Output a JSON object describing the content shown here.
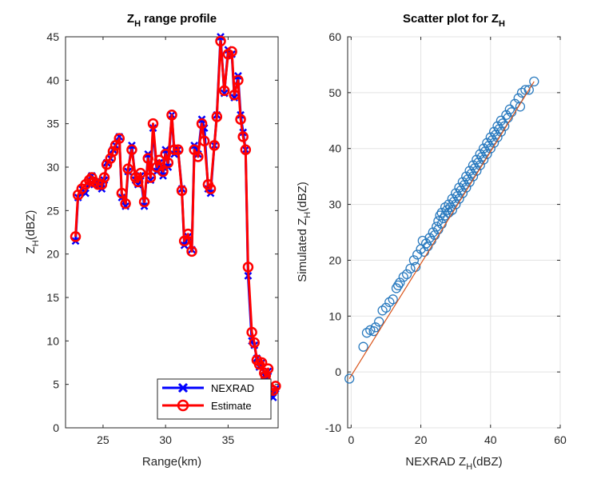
{
  "chart_data": [
    {
      "type": "line",
      "title_main": "Z",
      "title_sub": "H",
      "title_rest": " range profile",
      "xlabel": "Range(km)",
      "ylabel_main": "Z",
      "ylabel_sub": "H",
      "ylabel_rest": "(dBZ)",
      "xlim": [
        22,
        39
      ],
      "ylim": [
        0,
        45
      ],
      "xticks": [
        25,
        30,
        35
      ],
      "yticks": [
        0,
        5,
        10,
        15,
        20,
        25,
        30,
        35,
        40,
        45
      ],
      "legend_position": "bottom-right",
      "series": [
        {
          "name": "NEXRAD",
          "color": "#0000ff",
          "marker": "x",
          "x": [
            22.8,
            23.0,
            23.3,
            23.6,
            23.9,
            24.1,
            24.3,
            24.6,
            24.9,
            25.1,
            25.3,
            25.6,
            25.8,
            26.0,
            26.3,
            26.5,
            26.8,
            27.0,
            27.3,
            27.6,
            27.8,
            28.0,
            28.3,
            28.6,
            28.8,
            29.0,
            29.3,
            29.5,
            29.8,
            30.0,
            30.2,
            30.5,
            30.7,
            31.0,
            31.3,
            31.5,
            31.8,
            32.1,
            32.3,
            32.6,
            32.9,
            33.1,
            33.4,
            33.6,
            33.9,
            34.1,
            34.4,
            34.7,
            35.0,
            35.3,
            35.5,
            35.8,
            36.0,
            36.2,
            36.4,
            36.6,
            36.9,
            37.1,
            37.3,
            37.5,
            37.7,
            37.9,
            38.0,
            38.2,
            38.4,
            38.6,
            38.8
          ],
          "y": [
            21.5,
            26.5,
            27.5,
            27.0,
            28.5,
            29.0,
            28.0,
            28.5,
            27.5,
            28.5,
            30.5,
            31.0,
            32.0,
            32.5,
            33.5,
            26.5,
            25.5,
            29.5,
            32.5,
            28.5,
            28.0,
            29.0,
            25.5,
            31.5,
            28.5,
            34.5,
            29.5,
            30.5,
            29.0,
            32.0,
            30.0,
            36.0,
            31.5,
            32.0,
            27.5,
            21.0,
            22.0,
            20.5,
            32.5,
            31.5,
            35.5,
            34.5,
            27.5,
            27.0,
            32.5,
            36.0,
            45.0,
            38.5,
            43.5,
            43.0,
            38.0,
            40.5,
            36.0,
            34.0,
            32.0,
            17.5,
            10.0,
            9.5,
            8.0,
            7.0,
            7.5,
            6.0,
            5.5,
            6.5,
            4.0,
            3.5,
            4.5
          ]
        },
        {
          "name": "Estimate",
          "color": "#ff0000",
          "marker": "o",
          "x": [
            22.8,
            23.0,
            23.3,
            23.6,
            23.9,
            24.1,
            24.3,
            24.6,
            24.9,
            25.1,
            25.3,
            25.6,
            25.8,
            26.0,
            26.3,
            26.5,
            26.8,
            27.0,
            27.3,
            27.6,
            27.8,
            28.0,
            28.3,
            28.6,
            28.8,
            29.0,
            29.3,
            29.5,
            29.8,
            30.0,
            30.2,
            30.5,
            30.7,
            31.0,
            31.3,
            31.5,
            31.8,
            32.1,
            32.3,
            32.6,
            32.9,
            33.1,
            33.4,
            33.6,
            33.9,
            34.1,
            34.4,
            34.7,
            35.0,
            35.3,
            35.5,
            35.8,
            36.0,
            36.2,
            36.4,
            36.6,
            36.9,
            37.1,
            37.3,
            37.5,
            37.7,
            37.9,
            38.0,
            38.2,
            38.4,
            38.6,
            38.8
          ],
          "y": [
            22.0,
            26.8,
            27.5,
            28.0,
            28.5,
            28.8,
            28.3,
            28.0,
            28.0,
            28.8,
            30.3,
            31.0,
            31.8,
            32.5,
            33.3,
            27.0,
            25.8,
            29.8,
            32.0,
            28.8,
            28.3,
            29.3,
            26.0,
            31.0,
            28.8,
            35.0,
            30.0,
            30.8,
            29.5,
            31.5,
            30.5,
            36.0,
            32.0,
            32.0,
            27.3,
            21.5,
            22.3,
            20.3,
            32.0,
            31.2,
            35.0,
            33.0,
            28.0,
            27.5,
            32.5,
            35.8,
            44.5,
            38.8,
            43.0,
            43.3,
            38.3,
            40.0,
            35.5,
            33.5,
            32.0,
            18.5,
            11.0,
            9.8,
            7.8,
            7.3,
            7.5,
            6.3,
            6.0,
            6.8,
            4.5,
            4.3,
            4.8
          ]
        }
      ]
    },
    {
      "type": "scatter",
      "title_main": "Scatter plot for Z",
      "title_sub": "H",
      "xlabel_main": "NEXRAD Z",
      "xlabel_sub": "H",
      "xlabel_rest": "(dBZ)",
      "ylabel_main": "Simulated Z",
      "ylabel_sub": "H",
      "ylabel_rest": "(dBZ)",
      "xlim": [
        -1,
        60
      ],
      "ylim": [
        -10,
        60
      ],
      "xticks": [
        0,
        20,
        40,
        60
      ],
      "yticks": [
        -10,
        0,
        10,
        20,
        30,
        40,
        50,
        60
      ],
      "grid": true,
      "marker_color": "#2b7bbf",
      "fit_line": {
        "color": "#d95319",
        "x": [
          -0.5,
          52.5
        ],
        "y": [
          -1.2,
          52.0
        ]
      },
      "points": [
        [
          -0.5,
          -1.2
        ],
        [
          3.5,
          4.5
        ],
        [
          4.5,
          7.0
        ],
        [
          5.5,
          7.5
        ],
        [
          6.5,
          7.3
        ],
        [
          7.0,
          8.0
        ],
        [
          8.0,
          9.0
        ],
        [
          9.0,
          11.0
        ],
        [
          10.0,
          11.5
        ],
        [
          11.0,
          12.5
        ],
        [
          12.0,
          13.0
        ],
        [
          13.0,
          15.0
        ],
        [
          13.5,
          15.5
        ],
        [
          14.0,
          16.0
        ],
        [
          15.0,
          17.0
        ],
        [
          16.0,
          17.5
        ],
        [
          17.0,
          18.5
        ],
        [
          18.0,
          20.0
        ],
        [
          18.5,
          18.8
        ],
        [
          19.0,
          21.0
        ],
        [
          20.0,
          22.0
        ],
        [
          20.5,
          23.5
        ],
        [
          21.0,
          21.5
        ],
        [
          21.5,
          23.0
        ],
        [
          22.0,
          22.5
        ],
        [
          22.5,
          24.0
        ],
        [
          23.0,
          23.5
        ],
        [
          23.5,
          25.0
        ],
        [
          24.0,
          24.5
        ],
        [
          24.5,
          26.0
        ],
        [
          25.0,
          25.5
        ],
        [
          25.0,
          27.0
        ],
        [
          25.5,
          28.0
        ],
        [
          26.0,
          26.5
        ],
        [
          26.0,
          28.5
        ],
        [
          26.5,
          27.5
        ],
        [
          27.0,
          28.0
        ],
        [
          27.0,
          29.5
        ],
        [
          27.5,
          29.0
        ],
        [
          28.0,
          28.5
        ],
        [
          28.0,
          30.0
        ],
        [
          28.5,
          29.5
        ],
        [
          29.0,
          29.0
        ],
        [
          29.0,
          31.0
        ],
        [
          29.5,
          30.5
        ],
        [
          30.0,
          30.0
        ],
        [
          30.0,
          32.0
        ],
        [
          30.5,
          31.5
        ],
        [
          31.0,
          31.0
        ],
        [
          31.0,
          33.0
        ],
        [
          31.5,
          32.5
        ],
        [
          32.0,
          32.0
        ],
        [
          32.0,
          34.0
        ],
        [
          32.5,
          33.5
        ],
        [
          33.0,
          33.0
        ],
        [
          33.0,
          35.0
        ],
        [
          33.5,
          34.5
        ],
        [
          34.0,
          34.0
        ],
        [
          34.0,
          36.0
        ],
        [
          34.5,
          35.5
        ],
        [
          35.0,
          35.0
        ],
        [
          35.0,
          37.0
        ],
        [
          35.5,
          36.5
        ],
        [
          36.0,
          36.0
        ],
        [
          36.0,
          38.0
        ],
        [
          36.5,
          37.5
        ],
        [
          37.0,
          37.0
        ],
        [
          37.0,
          39.0
        ],
        [
          37.5,
          38.5
        ],
        [
          38.0,
          38.0
        ],
        [
          38.0,
          40.0
        ],
        [
          38.5,
          39.5
        ],
        [
          39.0,
          39.0
        ],
        [
          39.0,
          41.0
        ],
        [
          39.5,
          40.5
        ],
        [
          40.0,
          40.0
        ],
        [
          40.0,
          42.0
        ],
        [
          40.5,
          41.5
        ],
        [
          41.0,
          41.0
        ],
        [
          41.0,
          43.0
        ],
        [
          41.5,
          42.5
        ],
        [
          42.0,
          42.0
        ],
        [
          42.0,
          44.0
        ],
        [
          42.5,
          43.5
        ],
        [
          43.0,
          43.0
        ],
        [
          43.0,
          45.0
        ],
        [
          43.5,
          44.5
        ],
        [
          44.0,
          44.0
        ],
        [
          44.5,
          46.0
        ],
        [
          45.0,
          45.5
        ],
        [
          45.5,
          47.0
        ],
        [
          46.0,
          46.5
        ],
        [
          47.0,
          48.0
        ],
        [
          48.0,
          49.0
        ],
        [
          48.5,
          47.5
        ],
        [
          49.0,
          50.0
        ],
        [
          50.0,
          50.5
        ],
        [
          51.0,
          50.5
        ],
        [
          52.5,
          52.0
        ]
      ]
    }
  ]
}
